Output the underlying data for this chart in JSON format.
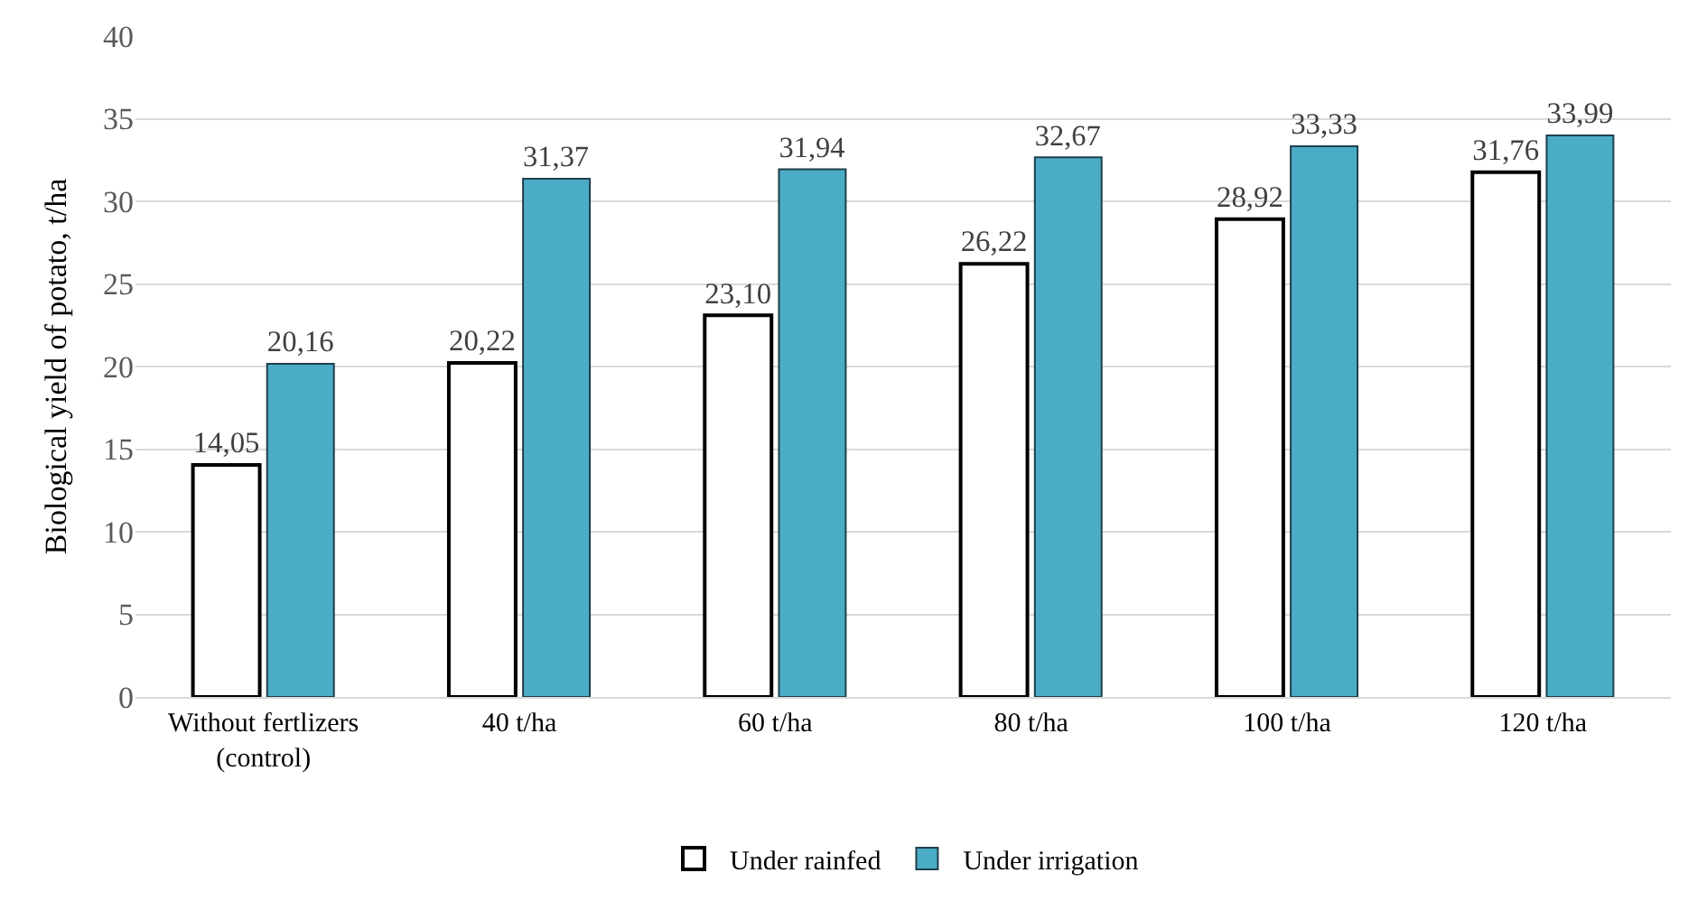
{
  "chart_data": {
    "type": "bar",
    "ylabel": "Biological yield of potato, t/ha",
    "categories": [
      "Without fertlizers\n(control)",
      "40 t/ha",
      "60 t/ha",
      "80 t/ha",
      "100 t/ha",
      "120 t/ha"
    ],
    "series": [
      {
        "name": "Under rainfed",
        "color": "#ffffff",
        "values": [
          14.05,
          20.22,
          23.1,
          26.22,
          28.92,
          31.76
        ],
        "value_labels": [
          "14,05",
          "20,22",
          "23,10",
          "26,22",
          "28,92",
          "31,76"
        ]
      },
      {
        "name": "Under irrigation",
        "color": "#4bacc6",
        "values": [
          20.16,
          31.37,
          31.94,
          32.67,
          33.33,
          33.99
        ],
        "value_labels": [
          "20,16",
          "31,37",
          "31,94",
          "32,67",
          "33,33",
          "33,99"
        ]
      }
    ],
    "ylim": [
      0,
      40
    ],
    "yticks": [
      0,
      5,
      10,
      15,
      20,
      25,
      30,
      35,
      40
    ],
    "grid": "y",
    "legend": "bottom"
  }
}
